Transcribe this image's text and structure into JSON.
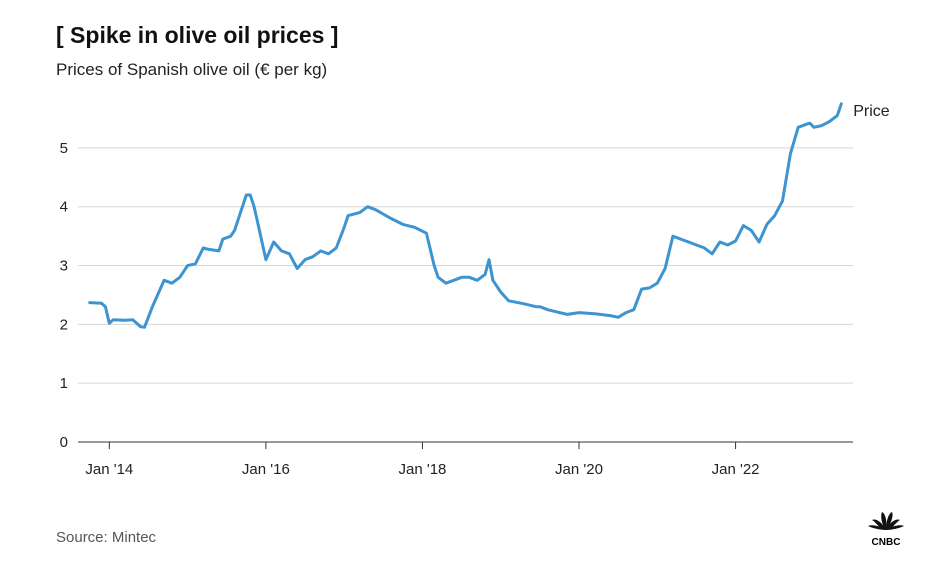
{
  "header": {
    "title": "[ Spike in olive oil prices ]",
    "subtitle": "Prices of Spanish olive oil (€ per kg)"
  },
  "footer": {
    "source": "Source: Mintec",
    "logo_text": "CNBC"
  },
  "colors": {
    "line": "#3d94d0",
    "grid": "#d8d8d8"
  },
  "chart_data": {
    "type": "line",
    "title": "[ Spike in olive oil prices ]",
    "subtitle": "Prices of Spanish olive oil (€ per kg)",
    "xlabel": "",
    "ylabel": "",
    "ylim": [
      0,
      5.9
    ],
    "yticks": [
      0,
      1,
      2,
      3,
      4,
      5
    ],
    "xlim": [
      2013.6,
      2023.5
    ],
    "xticks": [
      {
        "x": 2014,
        "label": "Jan '14"
      },
      {
        "x": 2016,
        "label": "Jan '16"
      },
      {
        "x": 2018,
        "label": "Jan '18"
      },
      {
        "x": 2020,
        "label": "Jan '20"
      },
      {
        "x": 2022,
        "label": "Jan '22"
      }
    ],
    "legend": "end-of-line label",
    "series": [
      {
        "name": "Price",
        "x": [
          2013.75,
          2013.9,
          2013.95,
          2014.0,
          2014.05,
          2014.2,
          2014.3,
          2014.4,
          2014.45,
          2014.55,
          2014.65,
          2014.7,
          2014.8,
          2014.9,
          2015.0,
          2015.1,
          2015.2,
          2015.25,
          2015.4,
          2015.45,
          2015.55,
          2015.6,
          2015.75,
          2015.8,
          2015.85,
          2015.9,
          2016.0,
          2016.1,
          2016.2,
          2016.3,
          2016.4,
          2016.5,
          2016.6,
          2016.7,
          2016.8,
          2016.9,
          2017.0,
          2017.05,
          2017.2,
          2017.3,
          2017.4,
          2017.6,
          2017.75,
          2017.9,
          2018.05,
          2018.15,
          2018.2,
          2018.3,
          2018.4,
          2018.5,
          2018.6,
          2018.7,
          2018.8,
          2018.85,
          2018.9,
          2019.0,
          2019.1,
          2019.3,
          2019.45,
          2019.5,
          2019.6,
          2019.75,
          2019.85,
          2020.0,
          2020.2,
          2020.4,
          2020.5,
          2020.6,
          2020.7,
          2020.8,
          2020.9,
          2021.0,
          2021.1,
          2021.2,
          2021.3,
          2021.4,
          2021.5,
          2021.6,
          2021.7,
          2021.8,
          2021.9,
          2022.0,
          2022.1,
          2022.2,
          2022.3,
          2022.4,
          2022.5,
          2022.6,
          2022.7,
          2022.8,
          2022.9,
          2022.95,
          2023.0,
          2023.1,
          2023.2,
          2023.3,
          2023.35
        ],
        "values": [
          2.37,
          2.36,
          2.3,
          2.02,
          2.08,
          2.07,
          2.08,
          1.96,
          1.95,
          2.3,
          2.6,
          2.75,
          2.7,
          2.8,
          3.0,
          3.03,
          3.3,
          3.28,
          3.25,
          3.45,
          3.5,
          3.6,
          4.2,
          4.2,
          4.0,
          3.7,
          3.1,
          3.4,
          3.25,
          3.2,
          2.95,
          3.1,
          3.15,
          3.25,
          3.2,
          3.3,
          3.65,
          3.85,
          3.9,
          4.0,
          3.95,
          3.8,
          3.7,
          3.65,
          3.55,
          3.0,
          2.8,
          2.7,
          2.75,
          2.8,
          2.8,
          2.75,
          2.85,
          3.1,
          2.75,
          2.55,
          2.4,
          2.35,
          2.3,
          2.3,
          2.25,
          2.2,
          2.17,
          2.2,
          2.18,
          2.15,
          2.12,
          2.2,
          2.25,
          2.6,
          2.62,
          2.7,
          2.95,
          3.5,
          3.45,
          3.4,
          3.35,
          3.3,
          3.2,
          3.4,
          3.35,
          3.42,
          3.68,
          3.6,
          3.4,
          3.7,
          3.85,
          4.1,
          4.9,
          5.35,
          5.4,
          5.42,
          5.35,
          5.38,
          5.45,
          5.55,
          5.75
        ]
      }
    ]
  }
}
